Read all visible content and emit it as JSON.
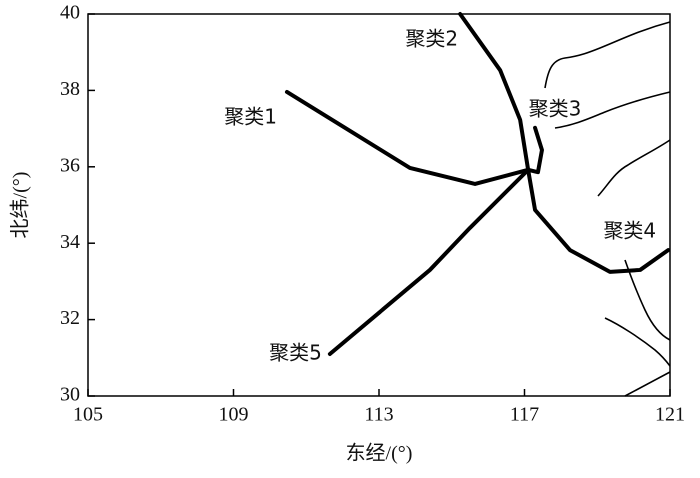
{
  "chart_data": {
    "type": "line",
    "xlabel": "东经/(°)",
    "ylabel": "北纬/(°)",
    "xlim": [
      105,
      121
    ],
    "xticks": [
      105,
      109,
      113,
      117,
      121
    ],
    "ylim": [
      30,
      40
    ],
    "yticks": [
      30,
      32,
      34,
      36,
      38,
      40
    ],
    "series": [
      {
        "name": "聚类1",
        "color": "#000000",
        "x": [
          110.47,
          113.85,
          115.64,
          117.1
        ],
        "values": [
          37.96,
          35.97,
          35.55,
          35.92
        ]
      },
      {
        "name": "聚类2",
        "color": "#000000",
        "x": [
          115.23,
          116.33,
          116.88,
          117.1
        ],
        "values": [
          40,
          38.53,
          37.23,
          35.92
        ]
      },
      {
        "name": "聚类3",
        "color": "#000000",
        "x": [
          117.29,
          117.48,
          117.37,
          117.1
        ],
        "values": [
          37.02,
          36.44,
          35.86,
          35.92
        ]
      },
      {
        "name": "聚类4",
        "color": "#000000",
        "x": [
          120.95,
          120.18,
          119.35,
          118.25,
          117.29,
          117.1
        ],
        "values": [
          33.82,
          33.3,
          33.25,
          33.82,
          34.87,
          35.92
        ]
      },
      {
        "name": "聚类5",
        "color": "#000000",
        "x": [
          111.65,
          114.4,
          115.5,
          117.1
        ],
        "values": [
          31.1,
          33.3,
          34.4,
          35.92
        ]
      }
    ]
  }
}
